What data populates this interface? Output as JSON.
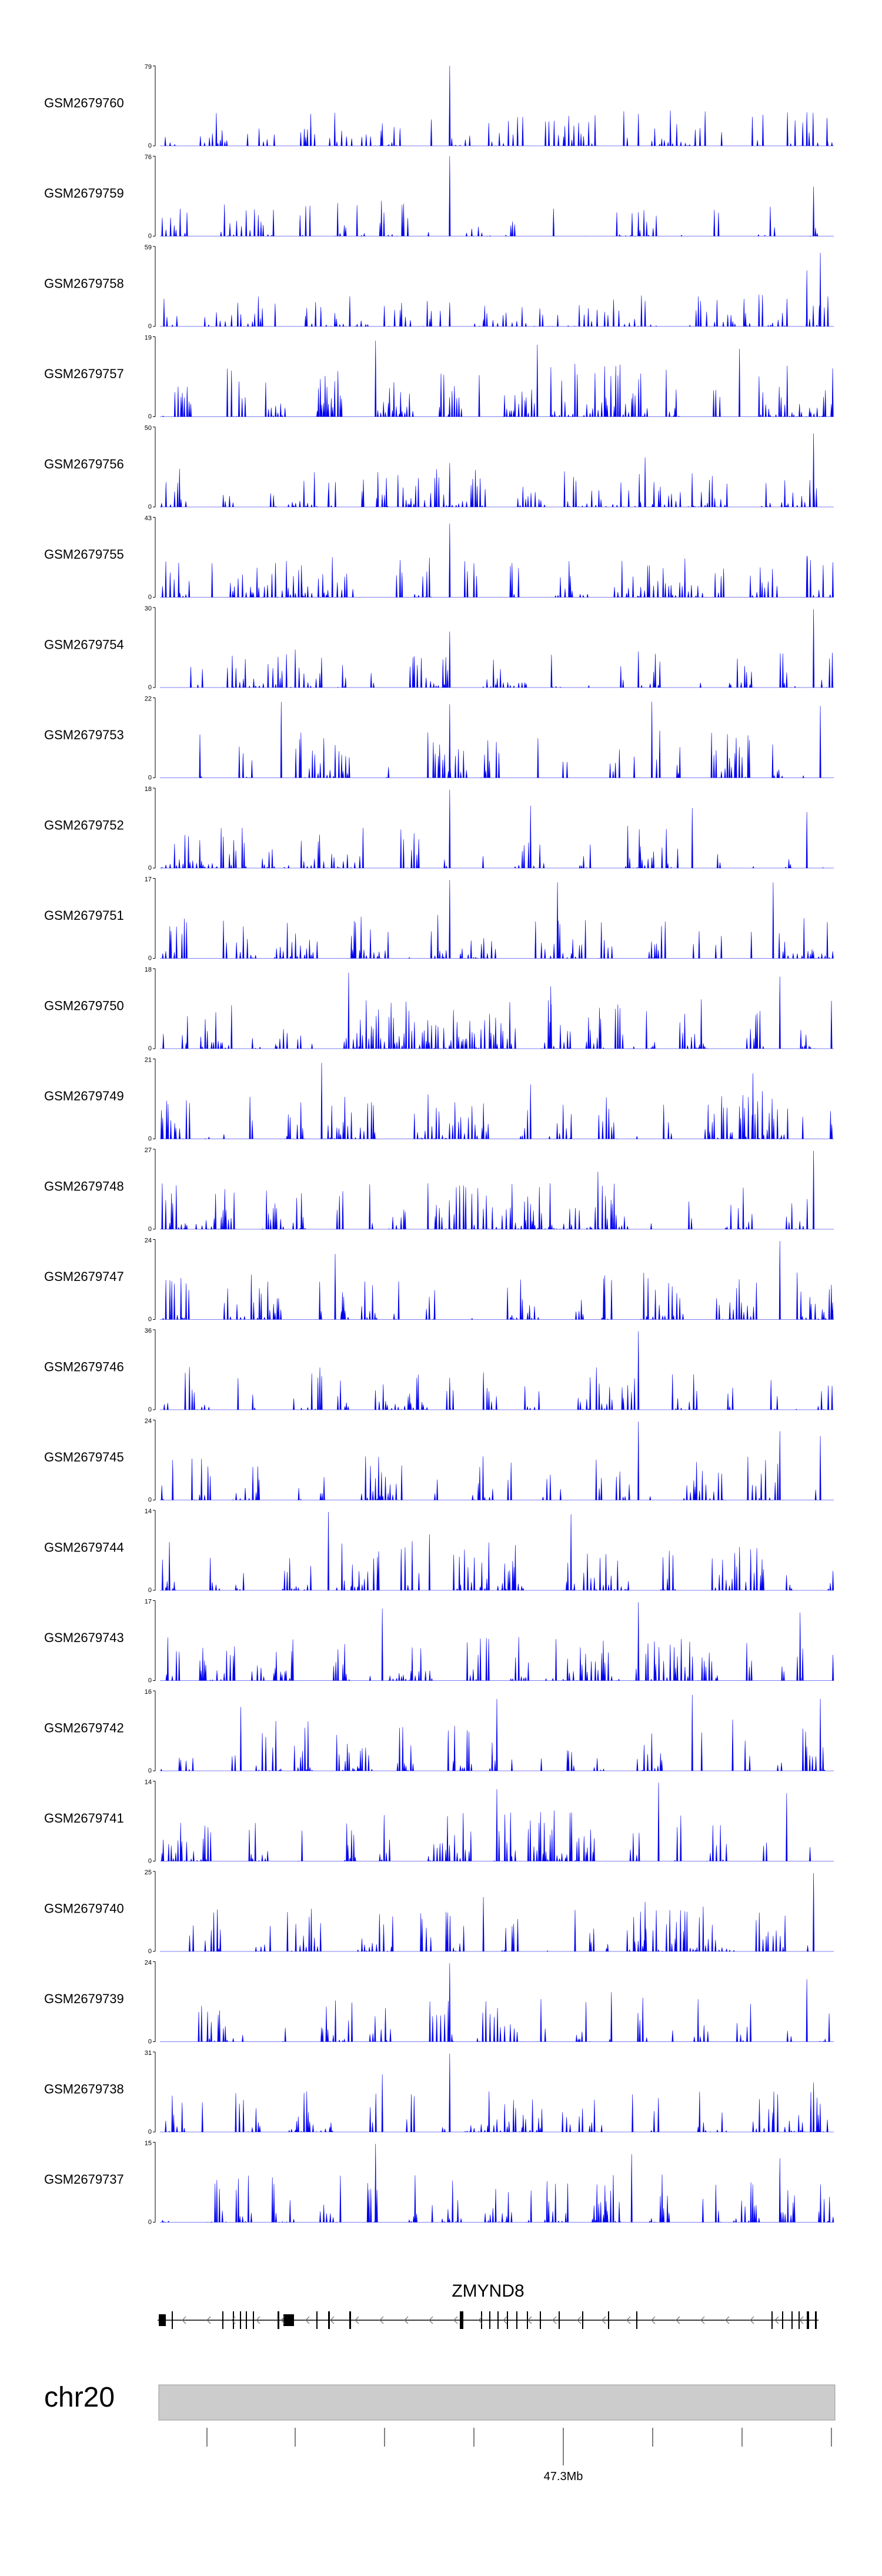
{
  "chart_data": {
    "type": "area",
    "title": "",
    "xlabel": "",
    "ylabel": "",
    "fill_color": "#0000ee",
    "tracks": [
      {
        "name": "GSM2679760",
        "ymax": "79",
        "zero": "0",
        "peak": 79,
        "density": 0.55,
        "peaks": [
          [
            0.13,
            0.15
          ],
          [
            0.33,
            0.28
          ],
          [
            0.43,
            1.0
          ],
          [
            0.71,
            0.4
          ],
          [
            0.96,
            0.42
          ],
          [
            0.99,
            0.35
          ]
        ]
      },
      {
        "name": "GSM2679759",
        "ymax": "76",
        "zero": "0",
        "peak": 76,
        "density": 0.55,
        "peaks": [
          [
            0.15,
            0.18
          ],
          [
            0.43,
            1.0
          ],
          [
            0.71,
            0.3
          ],
          [
            0.97,
            0.62
          ]
        ]
      },
      {
        "name": "GSM2679758",
        "ymax": "59",
        "zero": "0",
        "peak": 59,
        "density": 0.45,
        "peaks": [
          [
            0.43,
            0.3
          ],
          [
            0.72,
            0.32
          ],
          [
            0.96,
            0.7
          ],
          [
            0.98,
            0.92
          ]
        ]
      },
      {
        "name": "GSM2679757",
        "ymax": "19",
        "zero": "0",
        "peak": 19,
        "density": 0.95,
        "peaks": [
          [
            0.1,
            0.6
          ],
          [
            0.32,
            0.95
          ],
          [
            0.56,
            0.9
          ],
          [
            0.86,
            0.85
          ]
        ]
      },
      {
        "name": "GSM2679756",
        "ymax": "50",
        "zero": "0",
        "peak": 50,
        "density": 0.6,
        "peaks": [
          [
            0.25,
            0.22
          ],
          [
            0.43,
            0.55
          ],
          [
            0.72,
            0.62
          ],
          [
            0.97,
            0.92
          ]
        ]
      },
      {
        "name": "GSM2679755",
        "ymax": "43",
        "zero": "0",
        "peak": 43,
        "density": 0.65,
        "peaks": [
          [
            0.21,
            0.4
          ],
          [
            0.43,
            0.92
          ],
          [
            0.96,
            0.52
          ]
        ]
      },
      {
        "name": "GSM2679754",
        "ymax": "30",
        "zero": "0",
        "peak": 30,
        "density": 0.6,
        "peaks": [
          [
            0.43,
            0.7
          ],
          [
            0.71,
            0.45
          ],
          [
            0.97,
            0.98
          ]
        ]
      },
      {
        "name": "GSM2679753",
        "ymax": "22",
        "zero": "0",
        "peak": 22,
        "density": 0.8,
        "peaks": [
          [
            0.18,
            0.95
          ],
          [
            0.43,
            0.92
          ],
          [
            0.73,
            0.95
          ],
          [
            0.98,
            0.9
          ]
        ]
      },
      {
        "name": "GSM2679752",
        "ymax": "18",
        "zero": "0",
        "peak": 18,
        "density": 0.7,
        "peaks": [
          [
            0.43,
            0.98
          ],
          [
            0.55,
            0.78
          ],
          [
            0.79,
            0.75
          ],
          [
            0.96,
            0.7
          ]
        ]
      },
      {
        "name": "GSM2679751",
        "ymax": "17",
        "zero": "0",
        "peak": 17,
        "density": 0.75,
        "peaks": [
          [
            0.43,
            0.98
          ],
          [
            0.59,
            0.95
          ],
          [
            0.91,
            0.95
          ]
        ]
      },
      {
        "name": "GSM2679750",
        "ymax": "18",
        "zero": "0",
        "peak": 18,
        "density": 0.85,
        "peaks": [
          [
            0.28,
            0.95
          ],
          [
            0.58,
            0.78
          ],
          [
            0.92,
            0.9
          ]
        ]
      },
      {
        "name": "GSM2679749",
        "ymax": "21",
        "zero": "0",
        "peak": 21,
        "density": 0.85,
        "peaks": [
          [
            0.24,
            0.95
          ],
          [
            0.55,
            0.68
          ],
          [
            0.88,
            0.82
          ]
        ]
      },
      {
        "name": "GSM2679748",
        "ymax": "27",
        "zero": "0",
        "peak": 27,
        "density": 0.8,
        "peaks": [
          [
            0.65,
            0.72
          ],
          [
            0.97,
            0.98
          ],
          [
            0.21,
            0.45
          ]
        ]
      },
      {
        "name": "GSM2679747",
        "ymax": "24",
        "zero": "0",
        "peak": 24,
        "density": 0.8,
        "peaks": [
          [
            0.26,
            0.82
          ],
          [
            0.92,
            0.98
          ],
          [
            0.66,
            0.55
          ]
        ]
      },
      {
        "name": "GSM2679746",
        "ymax": "36",
        "zero": "0",
        "peak": 36,
        "density": 0.7,
        "peaks": [
          [
            0.71,
            0.98
          ],
          [
            0.24,
            0.42
          ],
          [
            0.43,
            0.4
          ]
        ]
      },
      {
        "name": "GSM2679745",
        "ymax": "24",
        "zero": "0",
        "peak": 24,
        "density": 0.75,
        "peaks": [
          [
            0.71,
            0.98
          ],
          [
            0.92,
            0.86
          ],
          [
            0.98,
            0.8
          ]
        ]
      },
      {
        "name": "GSM2679744",
        "ymax": "14",
        "zero": "0",
        "peak": 14,
        "density": 0.85,
        "peaks": [
          [
            0.25,
            0.98
          ],
          [
            0.4,
            0.7
          ],
          [
            0.61,
            0.95
          ]
        ]
      },
      {
        "name": "GSM2679743",
        "ymax": "17",
        "zero": "0",
        "peak": 17,
        "density": 0.75,
        "peaks": [
          [
            0.33,
            0.9
          ],
          [
            0.71,
            0.98
          ],
          [
            0.95,
            0.85
          ]
        ]
      },
      {
        "name": "GSM2679742",
        "ymax": "16",
        "zero": "0",
        "peak": 16,
        "density": 0.9,
        "peaks": [
          [
            0.12,
            0.8
          ],
          [
            0.5,
            0.9
          ],
          [
            0.79,
            0.95
          ],
          [
            0.98,
            0.9
          ]
        ]
      },
      {
        "name": "GSM2679741",
        "ymax": "14",
        "zero": "0",
        "peak": 14,
        "density": 0.95,
        "peaks": [
          [
            0.5,
            0.9
          ],
          [
            0.74,
            0.98
          ],
          [
            0.93,
            0.85
          ]
        ]
      },
      {
        "name": "GSM2679740",
        "ymax": "25",
        "zero": "0",
        "peak": 25,
        "density": 0.75,
        "peaks": [
          [
            0.48,
            0.68
          ],
          [
            0.72,
            0.62
          ],
          [
            0.97,
            0.98
          ]
        ]
      },
      {
        "name": "GSM2679739",
        "ymax": "24",
        "zero": "0",
        "peak": 24,
        "density": 0.75,
        "peaks": [
          [
            0.43,
            0.98
          ],
          [
            0.67,
            0.62
          ],
          [
            0.96,
            0.78
          ]
        ]
      },
      {
        "name": "GSM2679738",
        "ymax": "31",
        "zero": "0",
        "peak": 31,
        "density": 0.65,
        "peaks": [
          [
            0.33,
            0.72
          ],
          [
            0.43,
            0.98
          ],
          [
            0.97,
            0.62
          ]
        ]
      },
      {
        "name": "GSM2679737",
        "ymax": "15",
        "zero": "0",
        "peak": 15,
        "density": 0.85,
        "peaks": [
          [
            0.32,
            0.98
          ],
          [
            0.7,
            0.85
          ],
          [
            0.92,
            0.8
          ]
        ]
      }
    ],
    "gene": {
      "name": "ZMYND8",
      "strand": "-"
    },
    "chromosome": {
      "name": "chr20",
      "tick_label": "47.3Mb"
    }
  }
}
